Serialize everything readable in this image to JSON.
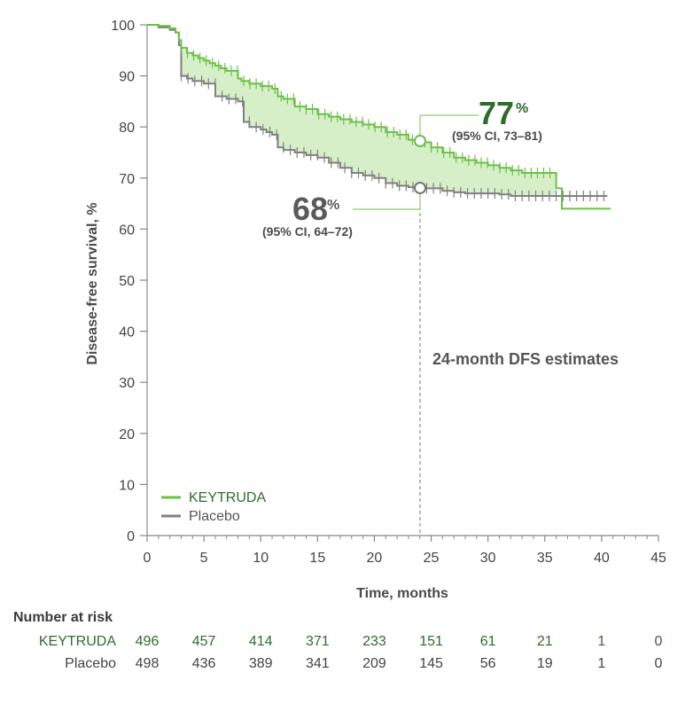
{
  "chart_data": {
    "type": "line",
    "subtype": "kaplan-meier step curve",
    "title": "",
    "xlabel": "Time, months",
    "ylabel": "Disease-free survival, %",
    "xlim": [
      0,
      45
    ],
    "ylim": [
      0,
      100
    ],
    "x_ticks": [
      "0",
      "5",
      "10",
      "15",
      "20",
      "25",
      "30",
      "35",
      "40",
      "45"
    ],
    "y_ticks": [
      "0",
      "10",
      "20",
      "30",
      "40",
      "50",
      "60",
      "70",
      "80",
      "90",
      "100"
    ],
    "grid": false,
    "legend": {
      "placement": "bottom-left",
      "entries": [
        "KEYTRUDA",
        "Placebo"
      ]
    },
    "colors": {
      "keytruda": "#6cc04a",
      "placebo": "#808080",
      "fill": "#d6efc8",
      "keytruda_text": "#2e6b2e",
      "placebo_text": "#5a5a5a"
    },
    "series": [
      {
        "name": "KEYTRUDA",
        "x": [
          0,
          1,
          2,
          2.5,
          2.8,
          3,
          3.5,
          4,
          4.5,
          5,
          5.5,
          6,
          6.5,
          7,
          8,
          8.3,
          9,
          10,
          11,
          11.5,
          12,
          13,
          14,
          15,
          16,
          17,
          18,
          19,
          20,
          21,
          22,
          23,
          24,
          25,
          26,
          27,
          28,
          29,
          30,
          31,
          32,
          33,
          34,
          35,
          36,
          36.5,
          40.8
        ],
        "y": [
          100,
          99.8,
          99.3,
          98.5,
          97,
          95.5,
          94.5,
          94,
          93.5,
          93,
          92.5,
          92,
          91.5,
          91,
          89.5,
          89,
          88.5,
          88,
          87.5,
          86,
          85.5,
          84,
          83.5,
          82.5,
          82,
          81.5,
          81,
          80.5,
          80,
          79,
          78.5,
          77.5,
          77,
          76,
          75,
          74,
          73.5,
          73,
          72.5,
          72,
          71.5,
          71,
          71,
          71,
          68,
          64,
          64
        ]
      },
      {
        "name": "Placebo",
        "x": [
          0,
          1,
          2,
          2.5,
          2.8,
          3,
          3.5,
          4,
          5,
          5.5,
          6,
          7,
          8,
          8.5,
          9,
          10,
          10.5,
          11,
          11.5,
          12,
          13,
          14,
          15,
          16,
          17,
          18,
          19,
          20,
          21,
          22,
          23,
          24,
          25,
          26,
          27,
          28,
          29,
          30,
          31,
          32,
          33,
          34,
          35,
          36,
          37,
          38,
          40.5
        ],
        "y": [
          100,
          99.5,
          99,
          98.5,
          96,
          90,
          89.5,
          89,
          88.5,
          88.5,
          86,
          85.5,
          85,
          81,
          80,
          79.5,
          79,
          78.5,
          76,
          75.5,
          75,
          74.5,
          74,
          73,
          72,
          71,
          70.5,
          70,
          69,
          68.5,
          68.2,
          68,
          68,
          67.5,
          67.2,
          67,
          67,
          67,
          66.8,
          66.5,
          66.5,
          66.5,
          66.5,
          66.5,
          66.5,
          66.5,
          66.5
        ]
      }
    ],
    "annotations": {
      "estimate_label": "24-month DFS estimates",
      "estimate_month": 24,
      "keytruda": {
        "value": "77",
        "percent_sign": "%",
        "ci": "(95% CI, 73–81)",
        "y": 77
      },
      "placebo": {
        "value": "68",
        "percent_sign": "%",
        "ci": "(95% CI, 64–72)",
        "y": 68
      }
    }
  },
  "risk_table": {
    "title": "Number at risk",
    "times": [
      0,
      5,
      10,
      15,
      20,
      25,
      30,
      35,
      40,
      45
    ],
    "rows": [
      {
        "label": "KEYTRUDA",
        "values": [
          "496",
          "457",
          "414",
          "371",
          "233",
          "151",
          "61",
          "21",
          "1",
          "0"
        ]
      },
      {
        "label": "Placebo",
        "values": [
          "498",
          "436",
          "389",
          "341",
          "209",
          "145",
          "56",
          "19",
          "1",
          "0"
        ]
      }
    ]
  }
}
